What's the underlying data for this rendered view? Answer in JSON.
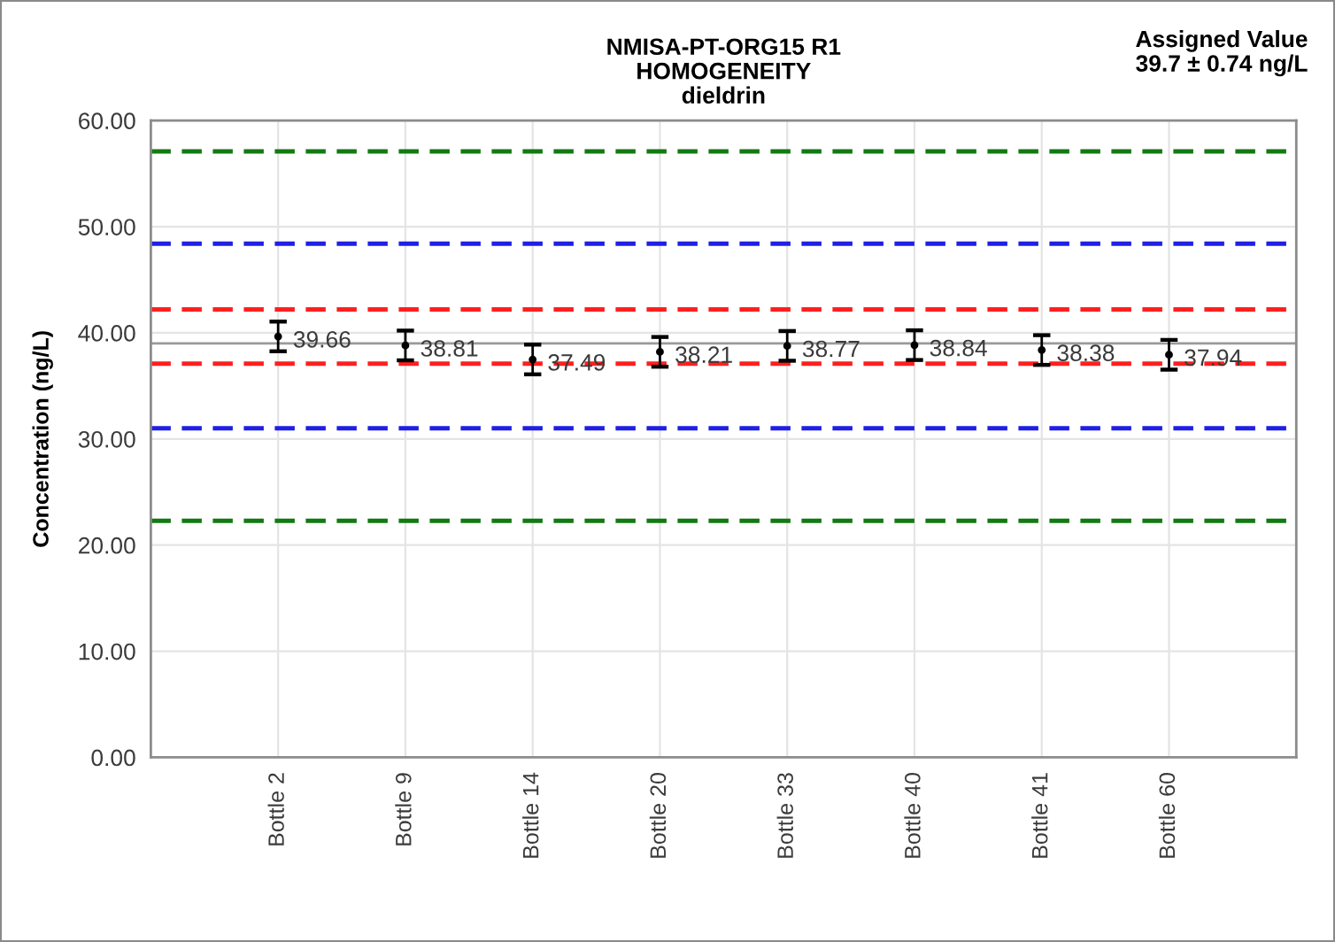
{
  "chart_data": {
    "type": "scatter",
    "title": "NMISA-PT-ORG15 R1\nHOMOGENEITY\ndieldrin",
    "ylabel": "Concentration (ng/L)",
    "annotations": [
      "Assigned Value\n39.7 ± 0.74 ng/L"
    ],
    "categories": [
      "Bottle 2",
      "Bottle 9",
      "Bottle 14",
      "Bottle 20",
      "Bottle 33",
      "Bottle 40",
      "Bottle 41",
      "Bottle 60"
    ],
    "values": [
      39.66,
      38.81,
      37.49,
      38.21,
      38.77,
      38.84,
      38.38,
      37.94
    ],
    "errors": [
      1.4,
      1.4,
      1.4,
      1.4,
      1.4,
      1.4,
      1.4,
      1.4
    ],
    "color": "#000000",
    "marker": "circle",
    "data_labels": true,
    "ylim": [
      0,
      60
    ],
    "yticks": [
      {
        "value": 0,
        "label": "0.00"
      },
      {
        "value": 10,
        "label": "10.00"
      },
      {
        "value": 20,
        "label": "20.00"
      },
      {
        "value": 30,
        "label": "30.00"
      },
      {
        "value": 40,
        "label": "40.00"
      },
      {
        "value": 50,
        "label": "50.00"
      },
      {
        "value": 60,
        "label": "60.00"
      }
    ],
    "grid": true,
    "ref_lines": [
      {
        "axis": "y",
        "value": 57.1,
        "color": "#127a12",
        "line_style": "dashed"
      },
      {
        "axis": "y",
        "value": 48.4,
        "color": "#1f1fe6",
        "line_style": "dashed"
      },
      {
        "axis": "y",
        "value": 42.2,
        "color": "#ff1f1f",
        "line_style": "dashed"
      },
      {
        "axis": "y",
        "value": 39.0,
        "color": "#9a9a9a",
        "line_style": "solid"
      },
      {
        "axis": "y",
        "value": 37.1,
        "color": "#ff1f1f",
        "line_style": "dashed"
      },
      {
        "axis": "y",
        "value": 31.0,
        "color": "#1f1fe6",
        "line_style": "dashed"
      },
      {
        "axis": "y",
        "value": 22.3,
        "color": "#127a12",
        "line_style": "dashed"
      }
    ]
  }
}
